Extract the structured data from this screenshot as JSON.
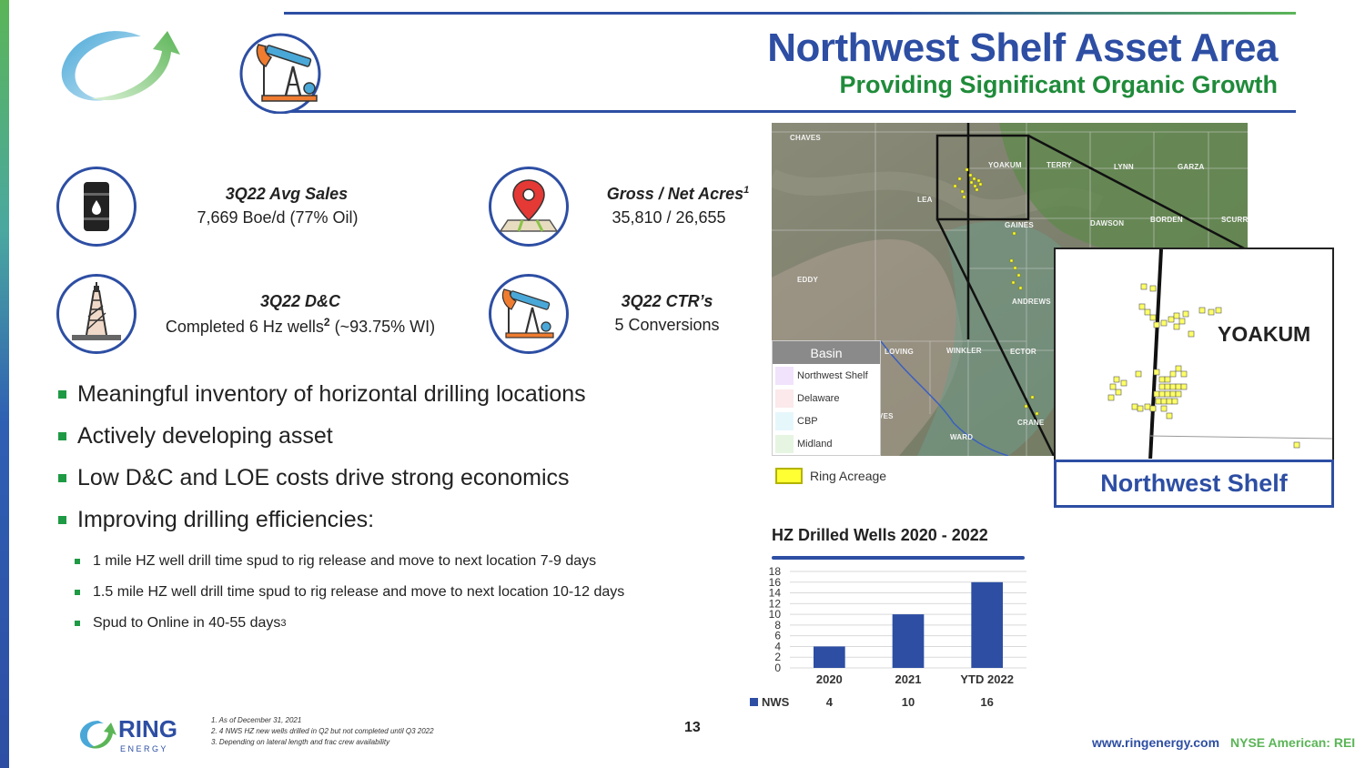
{
  "header": {
    "title": "Northwest Shelf Asset Area",
    "subtitle": "Providing Significant Organic Growth"
  },
  "stats": [
    {
      "title": "3Q22 Avg Sales",
      "value": "7,669 Boe/d (77% Oil)",
      "icon": "oil-barrel-icon"
    },
    {
      "title": "Gross / Net Acres",
      "title_sup": "1",
      "value": "35,810 / 26,655",
      "icon": "map-pin-icon"
    },
    {
      "title": "3Q22 D&C",
      "value_pre": "Completed 6 Hz wells",
      "value_sup": "2",
      "value_post": " (~93.75% WI)",
      "icon": "drilling-rig-icon"
    },
    {
      "title": "3Q22 CTR’s",
      "value": "5 Conversions",
      "icon": "pump-jack-icon"
    }
  ],
  "bullets": [
    "Meaningful inventory of horizontal drilling locations",
    "Actively developing asset",
    "Low D&C and LOE costs drive strong economics",
    "Improving drilling efficiencies:"
  ],
  "subbullets": [
    {
      "text": "1 mile HZ well drill time spud to rig release and move to next location 7-9 days",
      "sup": ""
    },
    {
      "text": "1.5 mile HZ well drill time spud to rig release and move to next location 10-12 days",
      "sup": ""
    },
    {
      "text": "Spud to Online in 40-55 days",
      "sup": "3"
    }
  ],
  "map": {
    "counties": [
      "CHAVES",
      "YOAKUM",
      "TERRY",
      "LYNN",
      "GARZA",
      "LEA",
      "GAINES",
      "DAWSON",
      "BORDEN",
      "SCURRY",
      "EDDY",
      "ANDREWS",
      "LOVING",
      "WINKLER",
      "ECTOR",
      "WARD",
      "CRANE",
      "REEVES"
    ],
    "legend_title": "Basin",
    "legend": [
      {
        "label": "Northwest Shelf",
        "color": "#f0e3fb"
      },
      {
        "label": "Delaware",
        "color": "#fbe9ec"
      },
      {
        "label": "CBP",
        "color": "#e6f7fb"
      },
      {
        "label": "Midland",
        "color": "#e6f5e1"
      }
    ],
    "ring_acreage_label": "Ring Acreage",
    "inset_county": "YOAKUM",
    "inset_caption": "Northwest Shelf"
  },
  "chart_data": {
    "type": "bar",
    "title": "HZ Drilled Wells 2020 - 2022",
    "categories": [
      "2020",
      "2021",
      "YTD 2022"
    ],
    "series": [
      {
        "name": "NWS",
        "values": [
          4,
          10,
          16
        ],
        "color": "#2d4ea3"
      }
    ],
    "ylim": [
      0,
      18
    ],
    "yticks": [
      0,
      2,
      4,
      6,
      8,
      10,
      12,
      14,
      16,
      18
    ],
    "grid": true,
    "data_table": true
  },
  "footnotes": [
    "1.    As of December 31, 2021",
    "2.    4 NWS HZ new wells drilled in Q2 but not completed until Q3 2022",
    "3.    Depending on lateral length and frac crew availability"
  ],
  "page_number": "13",
  "footer": {
    "logo_word": "RING",
    "logo_sub": "E N E R G Y",
    "website": "www.ringenergy.com",
    "exchange": "NYSE American: REI"
  }
}
